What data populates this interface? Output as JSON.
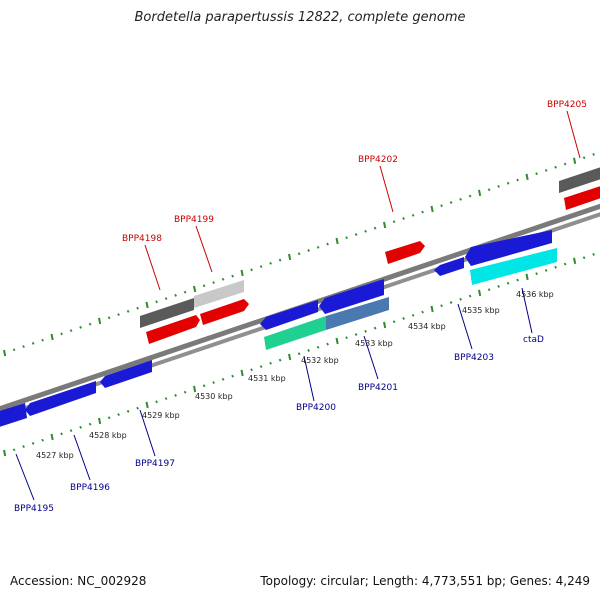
{
  "title": "Bordetella parapertussis 12822, complete genome",
  "footer": {
    "accession": "Accession: NC_002928",
    "topology": "Topology: circular; Length: 4,773,551 bp; Genes: 4,249"
  },
  "colors": {
    "backbone": "#8a8a8a",
    "tick_dots": "#2e8b2e",
    "label_forward": "#cc0000",
    "label_reverse": "#00008b"
  },
  "scale_labels": [
    "4527 kbp",
    "4528 kbp",
    "4529 kbp",
    "4530 kbp",
    "4531 kbp",
    "4532 kbp",
    "4533 kbp",
    "4534 kbp",
    "4535 kbp",
    "4536 kbp"
  ],
  "forward_labels": [
    "BPP4198",
    "BPP4199",
    "BPP4202",
    "BPP4205"
  ],
  "reverse_labels": [
    "BPP4195",
    "BPP4196",
    "BPP4197",
    "BPP4200",
    "BPP4201",
    "BPP4203",
    "ctaD"
  ]
}
